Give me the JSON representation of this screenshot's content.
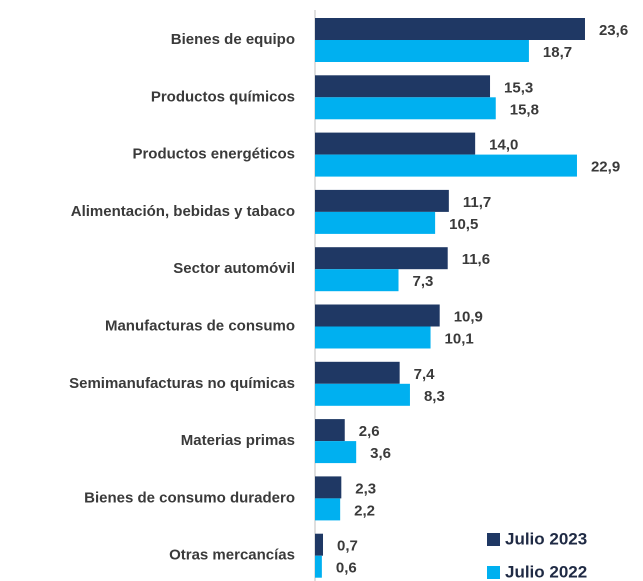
{
  "chart_data": {
    "type": "bar",
    "orientation": "horizontal",
    "categories": [
      "Bienes de equipo",
      "Productos químicos",
      "Productos energéticos",
      "Alimentación, bebidas y tabaco",
      "Sector automóvil",
      "Manufacturas de consumo",
      "Semimanufacturas no químicas",
      "Materias primas",
      "Bienes de consumo duradero",
      "Otras mercancías"
    ],
    "series": [
      {
        "name": "Julio 2023",
        "color": "#1f3864",
        "values": [
          23.6,
          15.3,
          14.0,
          11.7,
          11.6,
          10.9,
          7.4,
          2.6,
          2.3,
          0.7
        ],
        "value_labels": [
          "23,6",
          "15,3",
          "14,0",
          "11,7",
          "11,6",
          "10,9",
          "7,4",
          "2,6",
          "2,3",
          "0,7"
        ]
      },
      {
        "name": "Julio 2022",
        "color": "#00b0f0",
        "values": [
          18.7,
          15.8,
          22.9,
          10.5,
          7.3,
          10.1,
          8.3,
          3.6,
          2.2,
          0.6
        ],
        "value_labels": [
          "18,7",
          "15,8",
          "22,9",
          "10,5",
          "7,3",
          "10,1",
          "8,3",
          "3,6",
          "2,2",
          "0,6"
        ]
      }
    ],
    "legend": "lower right"
  }
}
